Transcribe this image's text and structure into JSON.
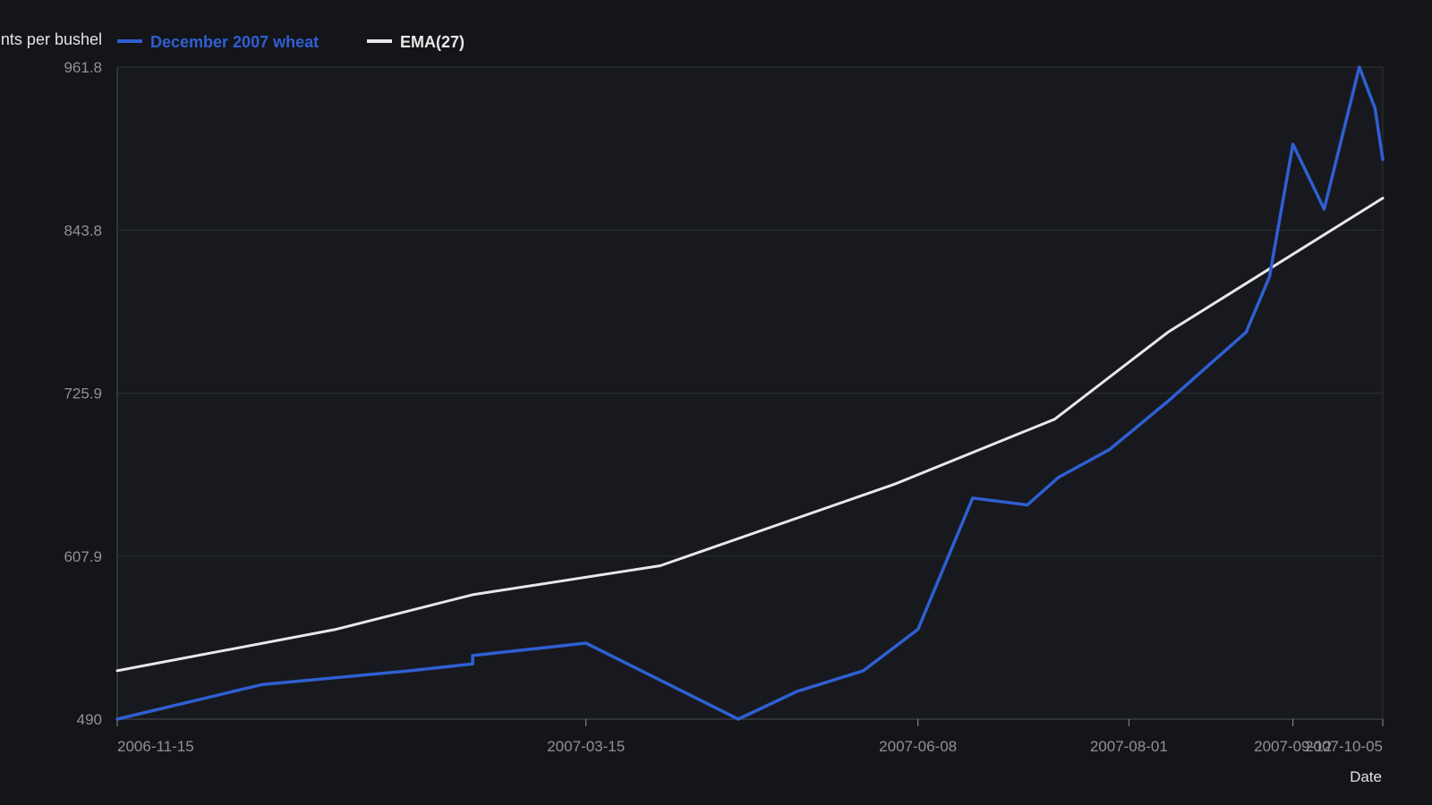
{
  "chart_data": {
    "type": "line",
    "title": "",
    "ylabel": "cents per bushel",
    "xlabel": "Date",
    "ylim": [
      490,
      961.8
    ],
    "y_ticks": [
      "490",
      "607.9",
      "725.9",
      "843.8",
      "961.8"
    ],
    "x_ticks": [
      "2006-11-15",
      "2007-03-15",
      "2007-06-08",
      "2007-08-01",
      "2007-09-12",
      "2007-10-05"
    ],
    "grid": true,
    "legend_position": "top-left",
    "series": [
      {
        "name": "December 2007 wheat",
        "color": "#2f5fd3",
        "points": [
          [
            "2006-11-15",
            490
          ],
          [
            "2006-12-22",
            515
          ],
          [
            "2007-01-29",
            525
          ],
          [
            "2007-02-14",
            530
          ],
          [
            "2007-02-14",
            536
          ],
          [
            "2007-03-15",
            545
          ],
          [
            "2007-04-23",
            490
          ],
          [
            "2007-05-08",
            510
          ],
          [
            "2007-05-25",
            525
          ],
          [
            "2007-06-08",
            555
          ],
          [
            "2007-06-22",
            650
          ],
          [
            "2007-07-06",
            645
          ],
          [
            "2007-07-14",
            665
          ],
          [
            "2007-07-27",
            685
          ],
          [
            "2007-08-11",
            720
          ],
          [
            "2007-08-31",
            770
          ],
          [
            "2007-09-06",
            810
          ],
          [
            "2007-09-12",
            906
          ],
          [
            "2007-09-20",
            859
          ],
          [
            "2007-09-29",
            961.8
          ],
          [
            "2007-10-03",
            932
          ],
          [
            "2007-10-05",
            895
          ]
        ]
      },
      {
        "name": "EMA(27)",
        "color": "#e8e8e8",
        "points": [
          [
            "2006-11-15",
            525
          ],
          [
            "2007-01-10",
            555
          ],
          [
            "2007-02-14",
            580
          ],
          [
            "2007-04-03",
            601
          ],
          [
            "2007-06-02",
            660
          ],
          [
            "2007-07-13",
            707
          ],
          [
            "2007-08-11",
            770
          ],
          [
            "2007-10-05",
            867
          ]
        ]
      }
    ]
  }
}
